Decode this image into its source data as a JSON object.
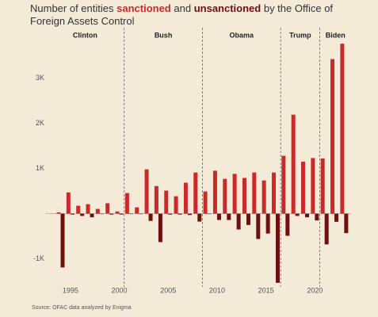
{
  "chart_data": {
    "type": "bar",
    "title": [
      "Number of entities",
      "and",
      "by the Office of Foreign Assets Control"
    ],
    "source": "Source: OFAC data analyzed by Enigma",
    "x": [
      1994,
      1995,
      1996,
      1997,
      1998,
      1999,
      2000,
      2001,
      2002,
      2003,
      2004,
      2005,
      2006,
      2007,
      2008,
      2009,
      2010,
      2011,
      2012,
      2013,
      2014,
      2015,
      2016,
      2017,
      2018,
      2019,
      2020,
      2021,
      2022,
      2023
    ],
    "series": [
      {
        "name": "sanctioned",
        "color": "#cc2a2a",
        "values": [
          30,
          470,
          175,
          210,
          105,
          230,
          50,
          455,
          140,
          980,
          610,
          510,
          385,
          685,
          910,
          490,
          950,
          770,
          880,
          790,
          910,
          735,
          910,
          1280,
          2190,
          1150,
          1230,
          1220,
          3420,
          3760
        ]
      },
      {
        "name": "unsanctioned",
        "color": "#6e1010",
        "values": [
          -1190,
          -20,
          -50,
          -80,
          -10,
          -20,
          -20,
          -10,
          -10,
          -160,
          -630,
          -20,
          -20,
          -30,
          -175,
          -10,
          -140,
          -140,
          -350,
          -250,
          -560,
          -440,
          -1530,
          -490,
          -50,
          -80,
          -150,
          -680,
          -180,
          -430
        ]
      }
    ],
    "periods": [
      {
        "name": "Clinton",
        "start": 1993
      },
      {
        "name": "Bush",
        "start": 2001
      },
      {
        "name": "Obama",
        "start": 2009
      },
      {
        "name": "Trump",
        "start": 2017
      },
      {
        "name": "Biden",
        "start": 2021
      }
    ],
    "xlim": [
      1992.5,
      2023.7
    ],
    "xticks": [
      1995,
      2000,
      2005,
      2010,
      2015,
      2020
    ],
    "ylim": [
      -1550,
      3850
    ],
    "yticks": [
      {
        "value": -1000,
        "label": "-1K"
      },
      {
        "value": 1000,
        "label": "1K"
      },
      {
        "value": 2000,
        "label": "2K"
      },
      {
        "value": 3000,
        "label": "3K"
      }
    ]
  }
}
